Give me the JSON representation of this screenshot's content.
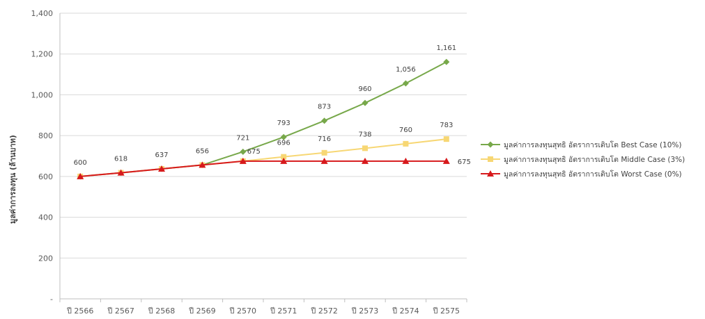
{
  "chart_data": {
    "type": "line",
    "ylabel": "มูลค่าการลงทุน (ล้านบาท)",
    "ylim": [
      0,
      1400
    ],
    "yticks": [
      0,
      200,
      400,
      600,
      800,
      1000,
      1200,
      1400
    ],
    "ytick_labels": [
      "-",
      "200",
      "400",
      "600",
      "800",
      "1,000",
      "1,200",
      "1,400"
    ],
    "categories": [
      "ปี 2566",
      "ปี 2567",
      "ปี 2568",
      "ปี 2569",
      "ปี 2570",
      "ปี 2571",
      "ปี 2572",
      "ปี 2573",
      "ปี 2574",
      "ปี 2575"
    ],
    "grid": true,
    "legend_position": "right",
    "series": [
      {
        "name": "มูลค่าการลงทุนสุทธิ อัตราการเติบโต Best Case (10%)",
        "color": "#77A84A",
        "marker": "diamond",
        "values": [
          600,
          618,
          637,
          656,
          721,
          793,
          873,
          960,
          1056,
          1161
        ],
        "labels": [
          "",
          "",
          "",
          "",
          "721",
          "793",
          "873",
          "960",
          "1,056",
          "1,161"
        ]
      },
      {
        "name": "มูลค่าการลงทุนสุทธิ อัตราการเติบโต Middle Case (3%)",
        "color": "#F7D774",
        "marker": "square",
        "values": [
          600,
          618,
          637,
          656,
          675,
          696,
          716,
          738,
          760,
          783
        ],
        "labels": [
          "",
          "",
          "",
          "",
          "",
          "696",
          "716",
          "738",
          "760",
          "783"
        ]
      },
      {
        "name": "มูลค่าการลงทุนสุทธิ อัตราการเติบโต Worst Case (0%)",
        "color": "#D7191C",
        "marker": "triangle",
        "values": [
          600,
          618,
          637,
          656,
          675,
          675,
          675,
          675,
          675,
          675
        ],
        "labels": [
          "600",
          "618",
          "637",
          "656",
          "675",
          "",
          "",
          "",
          "",
          "675"
        ]
      }
    ]
  }
}
